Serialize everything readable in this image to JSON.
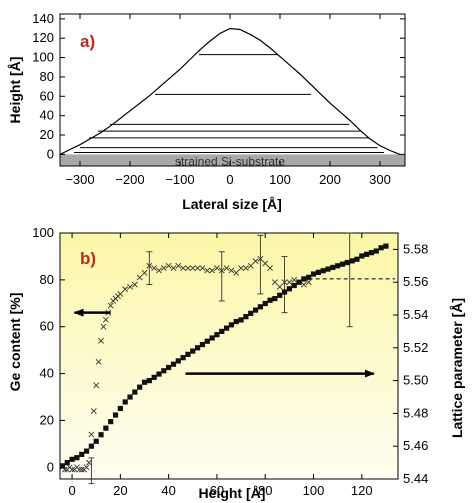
{
  "chart_data": [
    {
      "type": "line",
      "panel_label": "a)",
      "xlabel": "Lateral size [Å]",
      "ylabel": "Height [Å]",
      "xlim": [
        -340,
        350
      ],
      "ylim": [
        -12,
        145
      ],
      "x_ticks": [
        -300,
        -200,
        -100,
        0,
        100,
        200,
        300
      ],
      "y_ticks": [
        0,
        20,
        40,
        60,
        80,
        100,
        120,
        140
      ],
      "substrate_label": "strained Si-substrate",
      "substrate_color": "#a8a8a8",
      "profile": {
        "x": [
          -340,
          -320,
          -300,
          -280,
          -260,
          -240,
          -220,
          -200,
          -180,
          -160,
          -140,
          -120,
          -100,
          -80,
          -60,
          -40,
          -20,
          0,
          20,
          40,
          60,
          80,
          100,
          120,
          140,
          160,
          180,
          200,
          220,
          240,
          260,
          280,
          300,
          320,
          340
        ],
        "y": [
          0,
          5,
          10,
          16,
          22,
          29,
          37,
          45,
          53,
          61,
          70,
          79,
          88,
          98,
          108,
          117,
          125,
          130,
          129,
          124,
          118,
          110,
          101,
          92,
          83,
          73,
          63,
          53,
          44,
          35,
          25,
          16,
          9,
          4,
          0
        ]
      },
      "layers": [
        {
          "height": 2,
          "x_start": -312,
          "x_end": 308
        },
        {
          "height": 7,
          "x_start": -300,
          "x_end": 295
        },
        {
          "height": 17,
          "x_start": -282,
          "x_end": 278
        },
        {
          "height": 24,
          "x_start": -264,
          "x_end": 262
        },
        {
          "height": 31,
          "x_start": -240,
          "x_end": 238
        },
        {
          "height": 62,
          "x_start": -150,
          "x_end": 162
        },
        {
          "height": 103,
          "x_start": -62,
          "x_end": 96
        }
      ]
    },
    {
      "type": "scatter",
      "panel_label": "b)",
      "xlabel": "Height [Å]",
      "ylabel": "Ge content [%]",
      "y2label": "Lattice parameter [Å]",
      "xlim": [
        -5,
        135
      ],
      "ylim": [
        -5,
        100
      ],
      "y2lim": [
        5.44,
        5.59
      ],
      "x_ticks": [
        0,
        20,
        40,
        60,
        80,
        100,
        120
      ],
      "y_ticks": [
        0,
        20,
        40,
        60,
        80,
        100
      ],
      "y2_ticks": [
        "5.44",
        "5.46",
        "5.48",
        "5.50",
        "5.52",
        "5.54",
        "5.56",
        "5.58"
      ],
      "background_gradient": [
        "#fbf7a6",
        "#fffef2"
      ],
      "series": [
        {
          "axis": "left",
          "marker": "x",
          "x": [
            -4,
            -3,
            -2,
            -1,
            0,
            1,
            2,
            3,
            4,
            5,
            6,
            7,
            8,
            9,
            10,
            11,
            12,
            13,
            14,
            15,
            16,
            17,
            18,
            19,
            20,
            22,
            24,
            26,
            28,
            30,
            32,
            34,
            36,
            38,
            40,
            42,
            44,
            46,
            48,
            50,
            52,
            54,
            56,
            58,
            60,
            62,
            64,
            66,
            68,
            70,
            72,
            74,
            76,
            78,
            80,
            82,
            84,
            86,
            88,
            90,
            92,
            94,
            96,
            98
          ],
          "values": [
            0,
            -1,
            -1,
            0,
            -1,
            -1,
            0,
            -1,
            -1,
            -1,
            0,
            2,
            14,
            24,
            35,
            45,
            54,
            60,
            63,
            66,
            69,
            71,
            72,
            73,
            74,
            76,
            77,
            78,
            81,
            83,
            86,
            85,
            84,
            85,
            86,
            85,
            86,
            85,
            85,
            85,
            85,
            85,
            84,
            84,
            85,
            84,
            85,
            84,
            83,
            85,
            85,
            86,
            88,
            89,
            87,
            85,
            79,
            77,
            79,
            79,
            80,
            79,
            78,
            79
          ]
        },
        {
          "axis": "right",
          "marker": "square",
          "x": [
            -4,
            -2,
            0,
            2,
            4,
            6,
            8,
            10,
            12,
            14,
            16,
            18,
            20,
            22,
            24,
            26,
            28,
            30,
            32,
            34,
            36,
            38,
            40,
            42,
            44,
            46,
            48,
            50,
            52,
            54,
            56,
            58,
            60,
            62,
            64,
            66,
            68,
            70,
            72,
            74,
            76,
            78,
            80,
            82,
            84,
            86,
            88,
            90,
            92,
            94,
            96,
            98,
            100,
            102,
            104,
            106,
            108,
            110,
            112,
            114,
            116,
            118,
            120,
            122,
            124,
            126,
            128,
            130
          ],
          "values": [
            5.448,
            5.45,
            5.452,
            5.453,
            5.455,
            5.457,
            5.46,
            5.463,
            5.467,
            5.471,
            5.475,
            5.479,
            5.483,
            5.487,
            5.49,
            5.493,
            5.496,
            5.499,
            5.5,
            5.502,
            5.504,
            5.506,
            5.508,
            5.51,
            5.512,
            5.514,
            5.516,
            5.518,
            5.52,
            5.522,
            5.524,
            5.526,
            5.528,
            5.53,
            5.532,
            5.534,
            5.536,
            5.537,
            5.539,
            5.541,
            5.543,
            5.545,
            5.547,
            5.549,
            5.55,
            5.552,
            5.554,
            5.556,
            5.558,
            5.56,
            5.562,
            5.563,
            5.565,
            5.566,
            5.567,
            5.568,
            5.569,
            5.57,
            5.571,
            5.572,
            5.573,
            5.574,
            5.576,
            5.577,
            5.578,
            5.579,
            5.581,
            5.582
          ]
        }
      ],
      "error_bars": [
        {
          "x": 8,
          "y": -2,
          "low": -7,
          "high": 4
        },
        {
          "x": 32,
          "y": 86,
          "low": 78,
          "high": 92
        },
        {
          "x": 62,
          "y": 84,
          "low": 71,
          "high": 92
        },
        {
          "x": 78,
          "y": 89,
          "low": 74,
          "high": 99
        },
        {
          "x": 88,
          "y": 78,
          "low": 66,
          "high": 90
        },
        {
          "x": 115,
          "y": 80,
          "low": 60,
          "high": 100
        }
      ],
      "reference_line_y2": 5.562,
      "arrows": [
        {
          "from": [
            16,
            66
          ],
          "to": [
            1,
            66
          ]
        },
        {
          "from": [
            47,
            40
          ],
          "to": [
            125,
            40
          ]
        }
      ]
    }
  ]
}
